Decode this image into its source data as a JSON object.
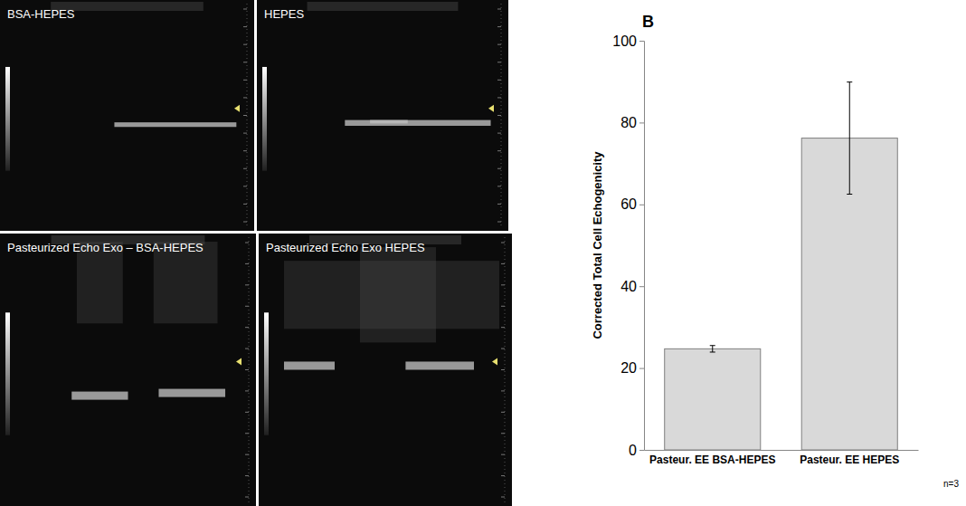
{
  "chart_data": {
    "type": "bar",
    "categories": [
      "Pasteur. EE BSA-HEPES",
      "Pasteur. EE HEPES"
    ],
    "values": [
      24.7,
      76.2
    ],
    "errors": [
      0.8,
      13.7
    ],
    "color": "#d9d9d9",
    "y_label": "Corrected Total Cell Echogenicity",
    "ylim": [
      0,
      100
    ],
    "yticks": [
      0,
      20,
      40,
      60,
      80,
      100
    ],
    "grid": false,
    "annotations": [
      "B",
      "n=3"
    ]
  },
  "images": {
    "panels": [
      "BSA-HEPES",
      "HEPES",
      "Pasteurized Echo Exo – BSA-HEPES",
      "Pasteurized Echo Exo HEPES"
    ]
  }
}
